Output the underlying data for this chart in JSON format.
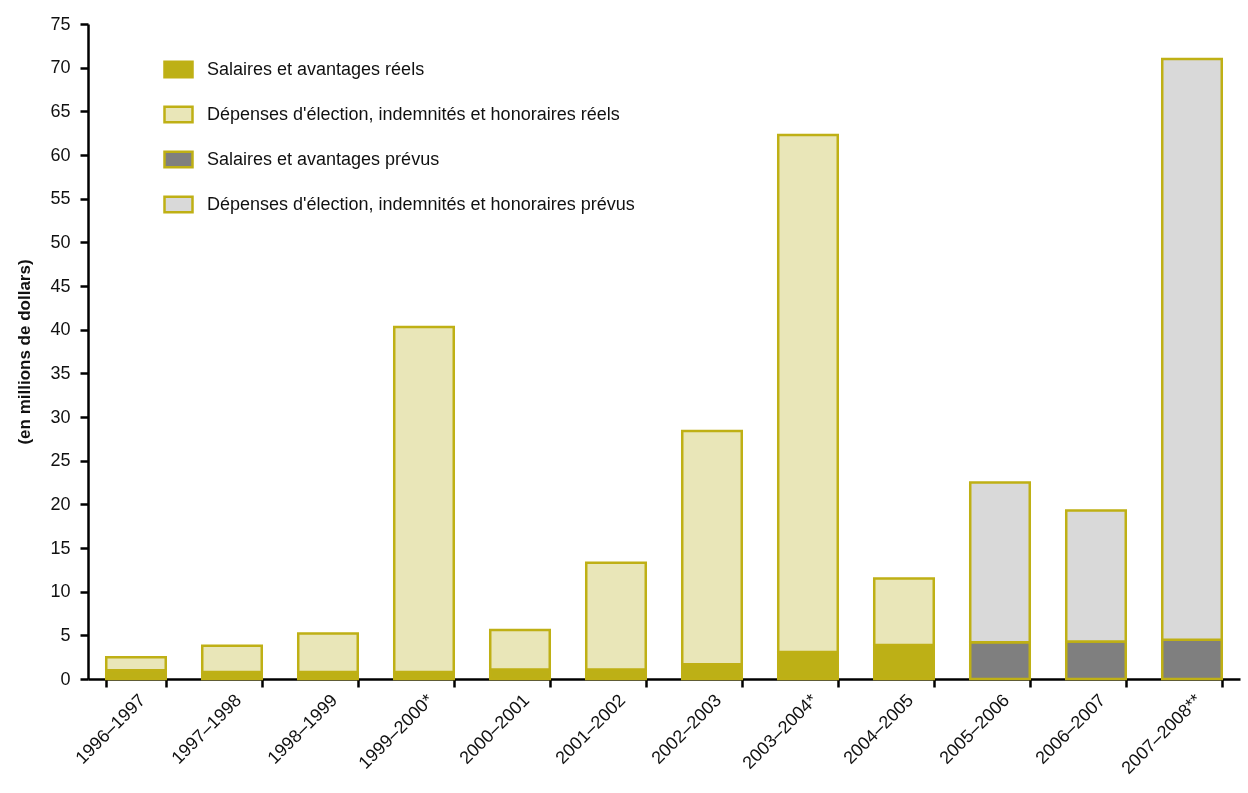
{
  "chart_data": {
    "type": "bar",
    "stacked": true,
    "ylabel": "(en millions de dollars)",
    "categories": [
      "1996–1997",
      "1997–1998",
      "1998–1999",
      "1999–2000*",
      "2000–2001",
      "2001–2002",
      "2002–2003",
      "2003–2004*",
      "2004–2005",
      "2005–2006",
      "2006–2007",
      "2007–2008**"
    ],
    "series": [
      {
        "name": "Salaires et avantages réels",
        "color": "#bdb016",
        "values": [
          1.0,
          0.8,
          0.8,
          0.8,
          1.1,
          1.1,
          1.7,
          3.1,
          3.9,
          null,
          null,
          null
        ]
      },
      {
        "name": "Dépenses d'élection, indemnités et honoraires réels",
        "color": "#e9e6b8",
        "values": [
          1.5,
          3.0,
          4.4,
          39.5,
          4.5,
          12.2,
          26.7,
          59.2,
          7.6,
          null,
          null,
          null
        ]
      },
      {
        "name": "Salaires et avantages prévus",
        "color": "#7f7f7f",
        "values": [
          null,
          null,
          null,
          null,
          null,
          null,
          null,
          null,
          null,
          4.2,
          4.3,
          4.5
        ]
      },
      {
        "name": "Dépenses d'élection, indemnités et honoraires prévus",
        "color": "#d9d9d9",
        "values": [
          null,
          null,
          null,
          null,
          null,
          null,
          null,
          null,
          null,
          18.3,
          15.0,
          66.5
        ]
      }
    ],
    "ylim": [
      0,
      75
    ],
    "yticks": [
      0,
      5,
      10,
      15,
      20,
      25,
      30,
      35,
      40,
      45,
      50,
      55,
      60,
      65,
      70,
      75
    ],
    "legend": "top left"
  }
}
